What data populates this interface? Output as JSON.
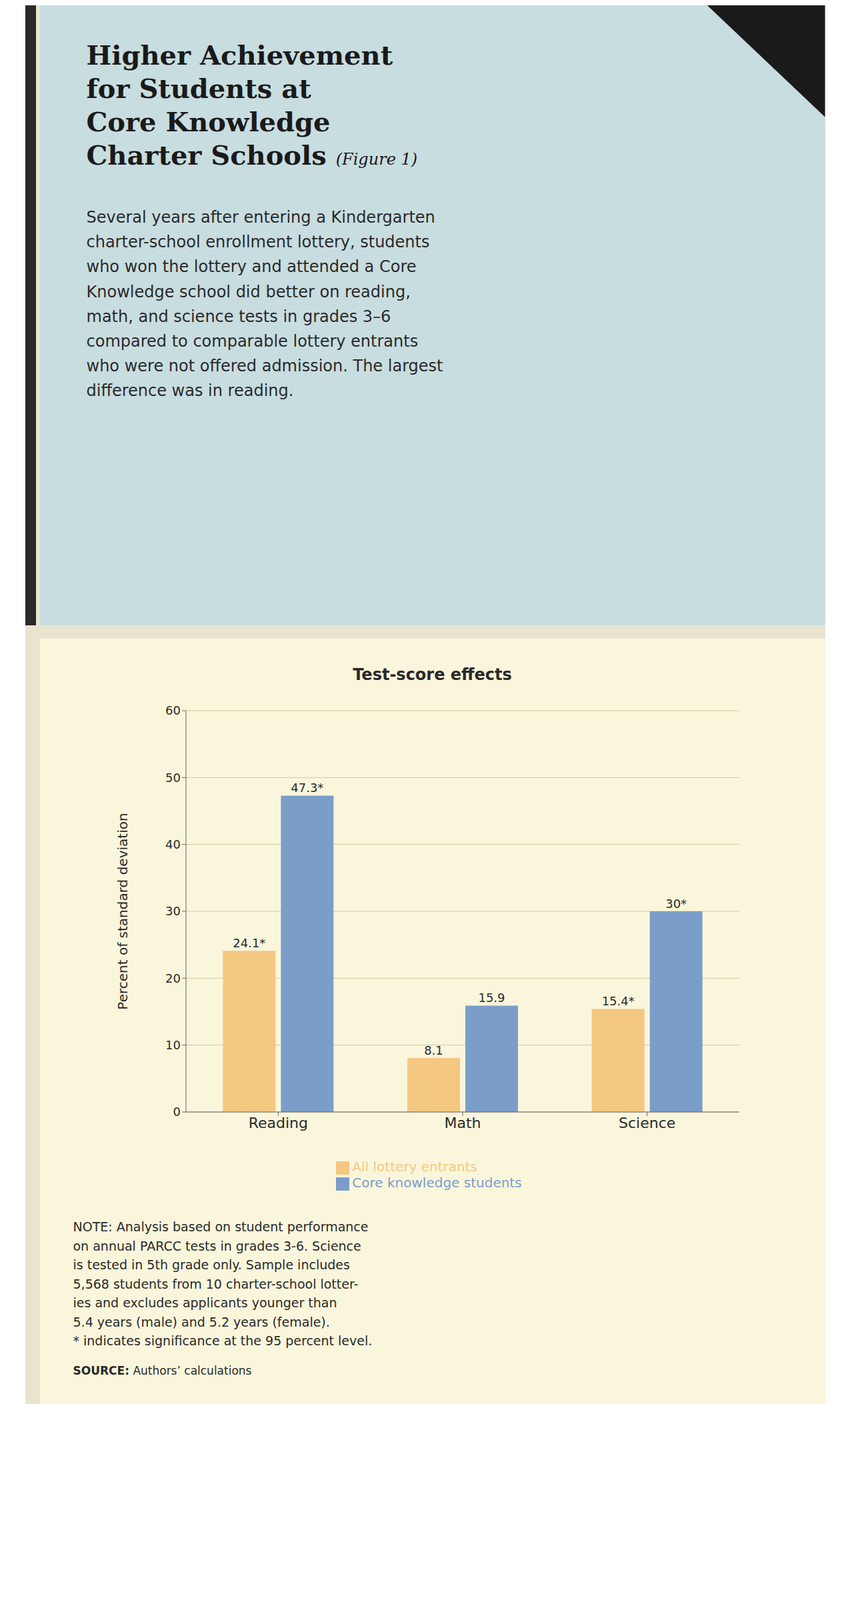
{
  "chart_data": {
    "type": "bar",
    "title": "Test-score effects",
    "categories": [
      "Reading",
      "Math",
      "Science"
    ],
    "series": [
      {
        "name": "All lottery entrants",
        "color": "#F5C882",
        "values": [
          24.1,
          8.1,
          15.4
        ],
        "value_labels": [
          "24.1*",
          "8.1",
          "15.4*"
        ]
      },
      {
        "name": "Core knowledge students",
        "color": "#7B9EC8",
        "values": [
          47.3,
          15.9,
          30.0
        ],
        "value_labels": [
          "47.3*",
          "15.9",
          "30*"
        ]
      }
    ],
    "ylim": [
      0,
      60
    ],
    "yticks": [
      0,
      10,
      20,
      30,
      40,
      50,
      60
    ],
    "ylabel": "Percent of standard deviation",
    "grid": true,
    "legend": "bottom",
    "data_labels": true,
    "annotations": [
      "Higher Achievement\nfor Students at\nCore Knowledge\nCharter Schools",
      "(Figure 1)",
      "Several years after entering a Kindergarten\ncharter-school enrollment lottery, students\nwho won the lottery and attended a Core\nKnowledge school did better on reading,\nmath, and science tests in grades 3–6\ncompared to comparable lottery entrants\nwho were not offered admission. The largest\ndifference was in reading.",
      "NOTE: Analysis based on student performance\non annual PARCC tests in grades 3-6. Science\nis tested in 5th grade only. Sample includes\n5,568 students from 10 charter-school lotter-\nies and excludes applicants younger than\n5.4 years (male) and 5.2 years (female).\n* indicates significance at the 95 percent level.",
      "SOURCE:",
      "Authors’ calculations"
    ]
  }
}
